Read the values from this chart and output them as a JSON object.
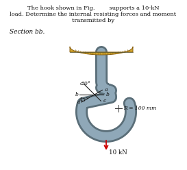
{
  "bg_color": "#ffffff",
  "header_line1": "The hook shown in Fig.        supports a 10-kN",
  "header_line2": "load. Determine the internal resisting forces and moment",
  "header_line3": "transmitted by",
  "section_text": "Section bb.",
  "hook_color": "#8fa8b8",
  "hook_dark": "#5a6e78",
  "support_fill": "#d4a830",
  "support_edge": "#8a6010",
  "support_top": "#c49020",
  "R_label": "R = 100 mm",
  "force_label": "10 kN",
  "force_color": "#cc0000",
  "text_color": "#111111"
}
